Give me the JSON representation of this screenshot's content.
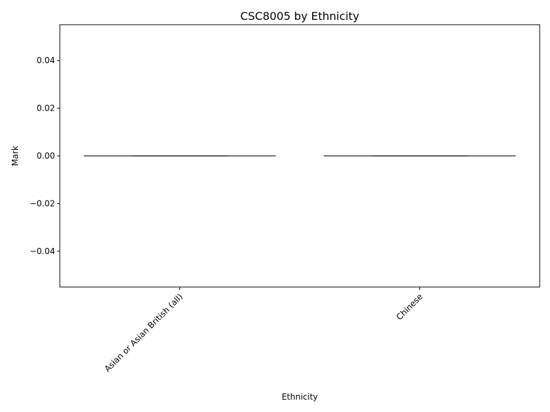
{
  "chart_data": {
    "type": "box",
    "title": "CSC8005 by Ethnicity",
    "xlabel": "Ethnicity",
    "ylabel": "Mark",
    "ylim": [
      -0.055,
      0.055
    ],
    "yticks": [
      -0.04,
      -0.02,
      0.0,
      0.02,
      0.04
    ],
    "ytick_labels": [
      "−0.04",
      "−0.02",
      "0.00",
      "0.02",
      "0.04"
    ],
    "categories": [
      "Asian or Asian British (all)",
      "Chinese"
    ],
    "boxes": [
      {
        "category": "Asian or Asian British (all)",
        "min": 0,
        "q1": 0,
        "median": 0,
        "q3": 0,
        "max": 0
      },
      {
        "category": "Chinese",
        "min": 0,
        "q1": 0,
        "median": 0,
        "q3": 0,
        "max": 0
      }
    ],
    "grid": false,
    "legend": "none",
    "box_color": "#3f3f3f"
  }
}
